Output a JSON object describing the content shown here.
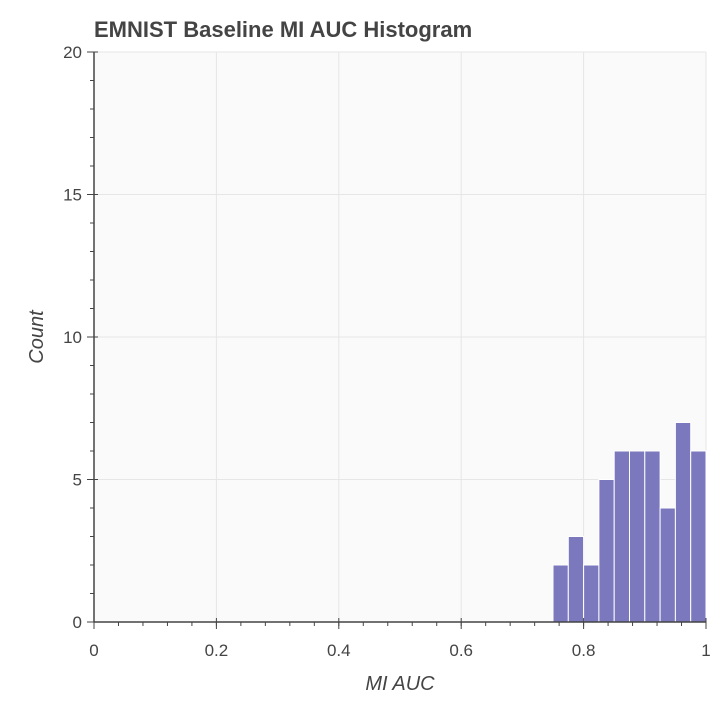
{
  "chart_data": {
    "type": "bar",
    "title": "EMNIST Baseline MI AUC Histogram",
    "xlabel": "MI AUC",
    "ylabel": "Count",
    "xlim": [
      0,
      1
    ],
    "ylim": [
      0,
      20
    ],
    "x_ticks": [
      "0",
      "0.2",
      "0.4",
      "0.6",
      "0.8",
      "1"
    ],
    "y_ticks": [
      "0",
      "5",
      "10",
      "15",
      "20"
    ],
    "grid": true,
    "legend": "none",
    "bin_width": 0.025,
    "bins": [
      {
        "x0": 0.75,
        "x1": 0.775,
        "count": 2
      },
      {
        "x0": 0.775,
        "x1": 0.8,
        "count": 3
      },
      {
        "x0": 0.8,
        "x1": 0.825,
        "count": 2
      },
      {
        "x0": 0.825,
        "x1": 0.85,
        "count": 5
      },
      {
        "x0": 0.85,
        "x1": 0.875,
        "count": 6
      },
      {
        "x0": 0.875,
        "x1": 0.9,
        "count": 6
      },
      {
        "x0": 0.9,
        "x1": 0.925,
        "count": 6
      },
      {
        "x0": 0.925,
        "x1": 0.95,
        "count": 4
      },
      {
        "x0": 0.95,
        "x1": 0.975,
        "count": 7
      },
      {
        "x0": 0.975,
        "x1": 1.0,
        "count": 6
      }
    ],
    "colors": {
      "bar_fill": "#7b78bd",
      "bar_stroke": "#ffffff",
      "plot_background": "#fafafa",
      "grid": "#e6e6e6",
      "axis": "#444444",
      "text": "#444444"
    }
  }
}
